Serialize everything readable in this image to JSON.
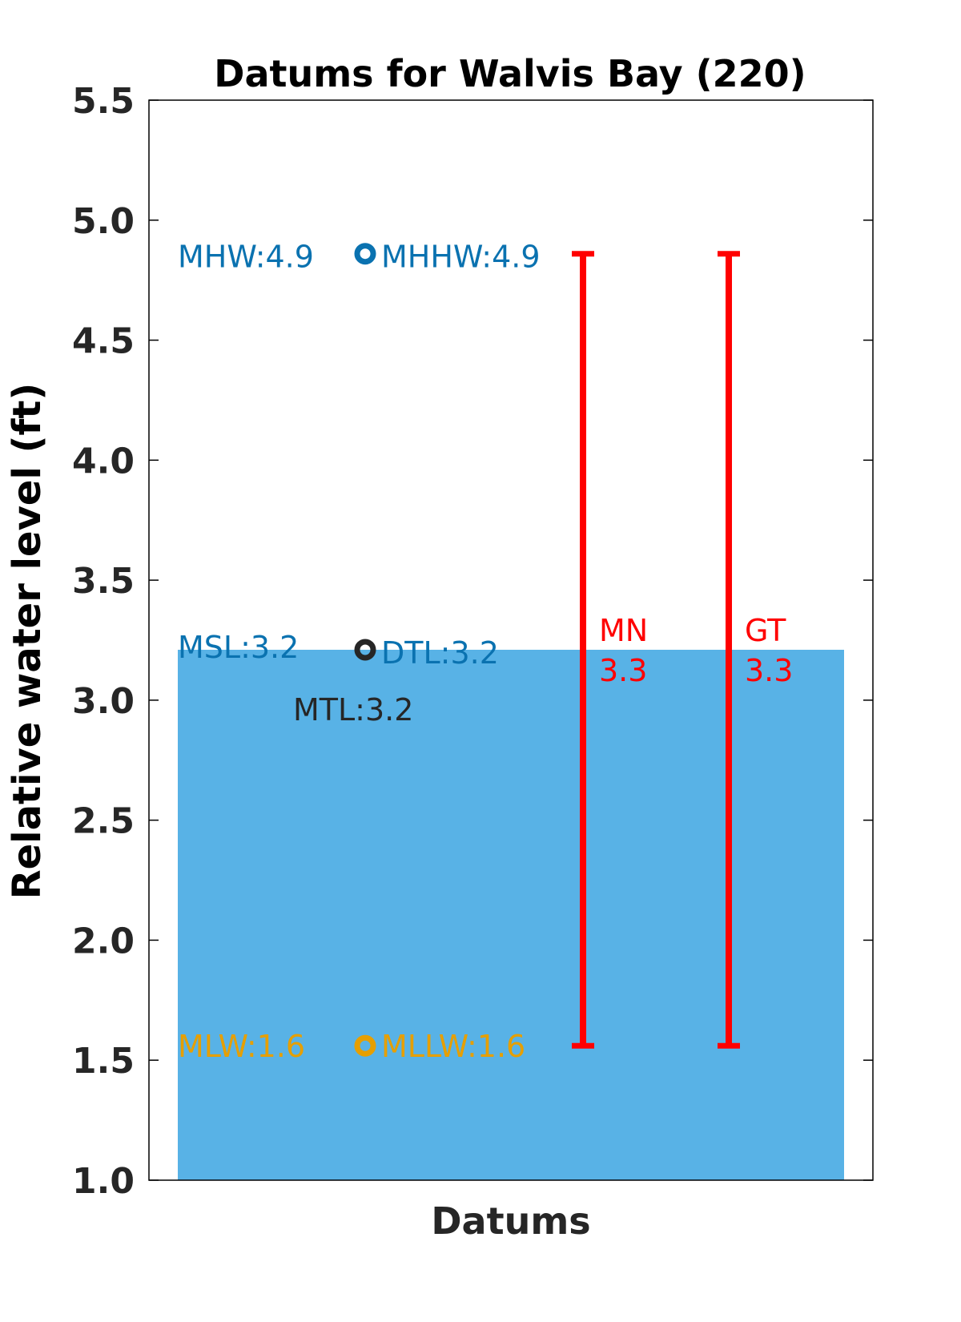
{
  "chart_data": {
    "type": "bar",
    "title": "Datums for Walvis Bay (220)",
    "xlabel": "Datums",
    "ylabel": "Relative water level (ft)",
    "ylim": [
      1.0,
      5.5
    ],
    "yticks": [
      "1.0",
      "1.5",
      "2.0",
      "2.5",
      "3.0",
      "3.5",
      "4.0",
      "4.5",
      "5.0",
      "5.5"
    ],
    "grid": false,
    "bar": {
      "value": 3.21,
      "color": "#58b2e6"
    },
    "points": [
      {
        "y": 4.86,
        "color": "#0a72b0"
      },
      {
        "y": 3.21,
        "color": "#262626"
      },
      {
        "y": 1.56,
        "color": "#e69f00"
      }
    ],
    "labels": [
      {
        "text": "MHW:4.9",
        "y": 4.86,
        "color": "#0a72b0"
      },
      {
        "text": "MHHW:4.9",
        "y": 4.86,
        "color": "#0a72b0"
      },
      {
        "text": "MSL:3.2",
        "y": 3.21,
        "color": "#0a72b0"
      },
      {
        "text": "DTL:3.2",
        "y": 3.21,
        "color": "#0a72b0"
      },
      {
        "text": "MTL:3.2",
        "y": 3.21,
        "color": "#262626"
      },
      {
        "text": "MLW:1.6",
        "y": 1.56,
        "color": "#e69f00"
      },
      {
        "text": "MLLW:1.6",
        "y": 1.56,
        "color": "#e69f00"
      }
    ],
    "ranges": [
      {
        "name": "MN",
        "value": "3.3",
        "low": 1.56,
        "high": 4.86,
        "color": "#ff0000"
      },
      {
        "name": "GT",
        "value": "3.3",
        "low": 1.56,
        "high": 4.86,
        "color": "#ff0000"
      }
    ]
  }
}
